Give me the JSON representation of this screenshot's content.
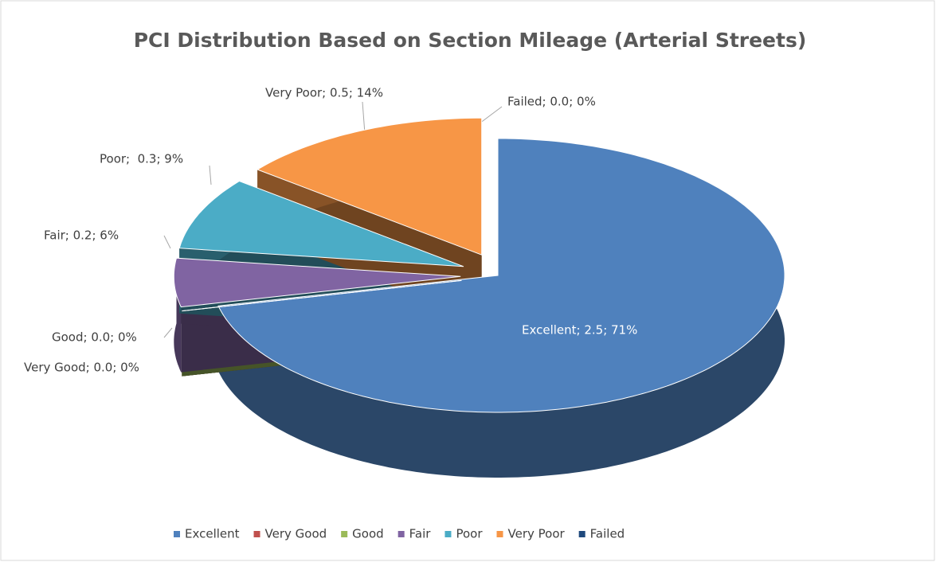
{
  "chart_data": {
    "type": "pie3d",
    "title": "PCI Distribution Based on Section Mileage (Arterial Streets)",
    "categories": [
      "Excellent",
      "Very Good",
      "Good",
      "Fair",
      "Poor",
      "Very Poor",
      "Failed"
    ],
    "values": [
      2.5,
      0.0,
      0.0,
      0.2,
      0.3,
      0.5,
      0.0
    ],
    "value_labels": [
      "Excellent; 2.5; 71%",
      "Very Good; 0.0; 0%",
      "Good; 0.0; 0%",
      "Fair; 0.2; 6%",
      "Poor;  0.3; 9%",
      "Very Poor; 0.5; 14%",
      "Failed; 0.0; 0%"
    ],
    "colors": [
      "#4f81bd",
      "#c0504d",
      "#9bbb59",
      "#8064a2",
      "#4bacc6",
      "#f79646",
      "#1f497d"
    ],
    "legend": "bottom"
  }
}
